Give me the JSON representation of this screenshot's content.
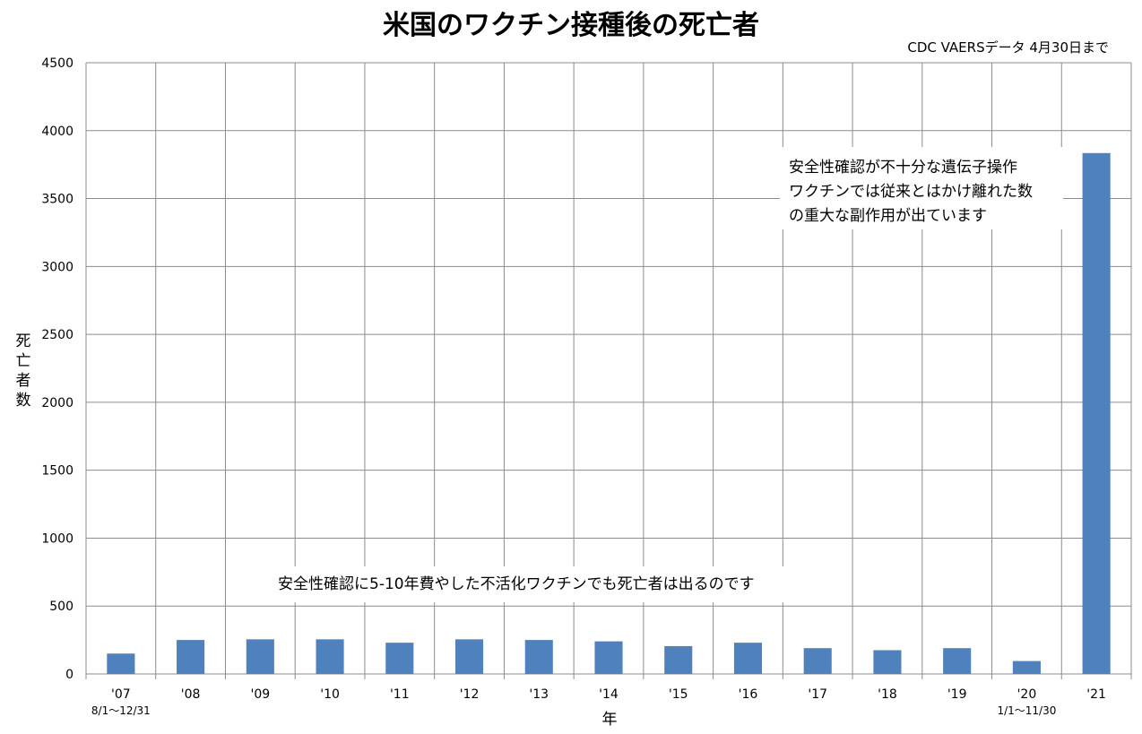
{
  "chart_data": {
    "type": "bar",
    "title": "米国のワクチン接種後の死亡者",
    "subtitle": "CDC VAERSデータ 4月30日まで",
    "xlabel": "年",
    "ylabel": "死亡者数",
    "ylim": [
      0,
      4500
    ],
    "yticks": [
      "0",
      "500",
      "1000",
      "1500",
      "2000",
      "2500",
      "3000",
      "3500",
      "4000",
      "4500"
    ],
    "categories": [
      "'07",
      "'08",
      "'09",
      "'10",
      "'11",
      "'12",
      "'13",
      "'14",
      "'15",
      "'16",
      "'17",
      "'18",
      "'19",
      "'20",
      "'21"
    ],
    "category_notes": [
      "8/1～12/31",
      "",
      "",
      "",
      "",
      "",
      "",
      "",
      "",
      "",
      "",
      "",
      "",
      "1/1～11/30",
      ""
    ],
    "values": [
      150,
      250,
      255,
      255,
      230,
      255,
      250,
      240,
      205,
      230,
      190,
      175,
      190,
      95,
      3835
    ],
    "grid": true,
    "bar_color": "#4f81bd",
    "annotations": [
      {
        "lines": [
          "安全性確認が不十分な遺伝子操作",
          "ワクチンでは従来とはかけ離れた数",
          "の重大な副作用が出ています"
        ]
      },
      {
        "lines": [
          "安全性確認に5-10年費やした不活化ワクチンでも死亡者は出るのです"
        ]
      }
    ]
  }
}
